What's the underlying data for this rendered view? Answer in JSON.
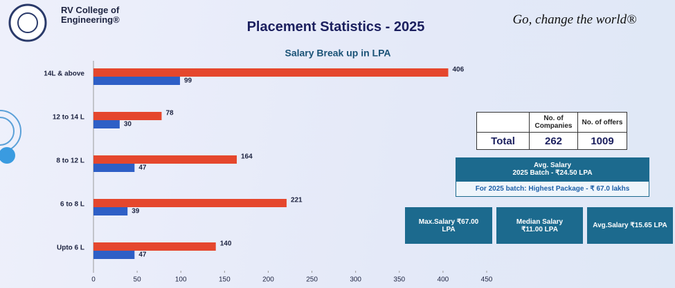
{
  "header": {
    "college": "RV College of Engineering®",
    "title": "Placement Statistics - 2025",
    "tagline": "Go, change the world®"
  },
  "chart_data": {
    "type": "hbar",
    "title": "Salary Break up in LPA",
    "categories": [
      "14L & above",
      "12 to 14 L",
      "8 to 12 L",
      "6 to 8 L",
      "Upto 6 L"
    ],
    "series": [
      {
        "color": "#e5472d",
        "values": [
          406,
          78,
          164,
          221,
          140
        ]
      },
      {
        "color": "#2e5fc6",
        "values": [
          99,
          30,
          47,
          39,
          47
        ]
      }
    ],
    "xlim": [
      0,
      450
    ],
    "xticks": [
      0,
      50,
      100,
      150,
      200,
      250,
      300,
      350,
      400,
      450
    ],
    "grid": false
  },
  "summary_table": {
    "headers": [
      "No. of Companies",
      "No. of offers"
    ],
    "rows": [
      [
        "Total",
        262,
        1009
      ]
    ]
  },
  "avg_salary": {
    "title": "Avg. Salary",
    "batch": "2025 Batch - ₹24.50 LPA",
    "highest": "For 2025 batch: Highest Package - ₹ 67.0 lakhs"
  },
  "stats": [
    "Max.Salary ₹67.00 LPA",
    "Median Salary ₹11.00 LPA",
    "Avg.Salary ₹15.65 LPA"
  ]
}
